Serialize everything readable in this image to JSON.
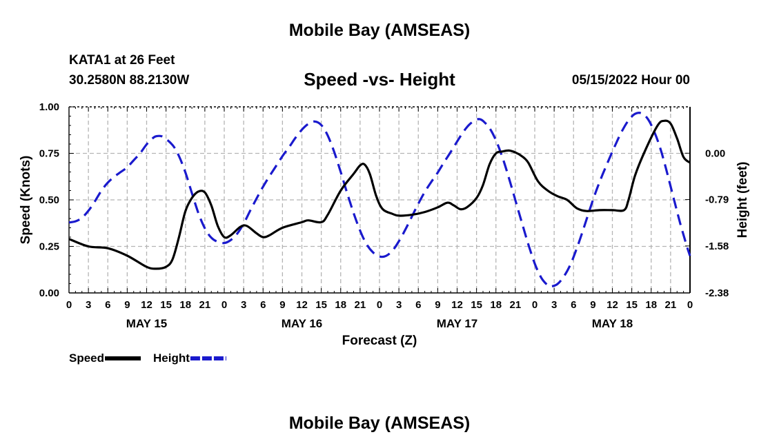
{
  "header": {
    "title": "Mobile Bay (AMSEAS)",
    "station": "KATA1 at 26 Feet",
    "coords": "30.2580N  88.2130W",
    "chart_title": "Speed -vs- Height",
    "run_time": "05/15/2022 Hour 00"
  },
  "footer": {
    "title": "Mobile Bay (AMSEAS)"
  },
  "chart_data": {
    "type": "line",
    "title": "Speed -vs- Height",
    "xlabel": "Forecast (Z)",
    "ylabel": "Speed (Knots)",
    "y2label": "Height (feet)",
    "x_range": [
      0,
      96
    ],
    "ylim": [
      0,
      1.0
    ],
    "y2lim": [
      -2.38,
      0.79
    ],
    "x_tick_labels": [
      "0",
      "3",
      "6",
      "9",
      "12",
      "15",
      "18",
      "21",
      "0",
      "3",
      "6",
      "9",
      "12",
      "15",
      "18",
      "21",
      "0",
      "3",
      "6",
      "9",
      "12",
      "15",
      "18",
      "21",
      "0",
      "3",
      "6",
      "9",
      "12",
      "15",
      "18",
      "21",
      "0"
    ],
    "y_tick_labels": [
      "0.00",
      "0.25",
      "0.50",
      "0.75",
      "1.00"
    ],
    "y2_tick_labels": [
      "-2.38",
      "-1.58",
      "-0.79",
      "0.00"
    ],
    "day_labels": [
      {
        "label": "MAY 15",
        "hour": 12
      },
      {
        "label": "MAY 16",
        "hour": 36
      },
      {
        "label": "MAY 17",
        "hour": 60
      },
      {
        "label": "MAY 18",
        "hour": 84
      }
    ],
    "grid": true,
    "legend_position": "bottom-left",
    "series": [
      {
        "name": "Speed",
        "axis": "left",
        "color": "#000000",
        "style": "solid",
        "points": [
          [
            0,
            0.29
          ],
          [
            3,
            0.25
          ],
          [
            6,
            0.24
          ],
          [
            9,
            0.2
          ],
          [
            12,
            0.14
          ],
          [
            13.5,
            0.13
          ],
          [
            15,
            0.14
          ],
          [
            16,
            0.18
          ],
          [
            17,
            0.3
          ],
          [
            18,
            0.44
          ],
          [
            19,
            0.51
          ],
          [
            20,
            0.545
          ],
          [
            21,
            0.54
          ],
          [
            22,
            0.47
          ],
          [
            23,
            0.36
          ],
          [
            24,
            0.3
          ],
          [
            25,
            0.31
          ],
          [
            26.5,
            0.355
          ],
          [
            27.5,
            0.36
          ],
          [
            29,
            0.32
          ],
          [
            30,
            0.3
          ],
          [
            31,
            0.31
          ],
          [
            33,
            0.35
          ],
          [
            36,
            0.38
          ],
          [
            37,
            0.39
          ],
          [
            39,
            0.38
          ],
          [
            40,
            0.42
          ],
          [
            42,
            0.55
          ],
          [
            44,
            0.64
          ],
          [
            45,
            0.685
          ],
          [
            45.7,
            0.69
          ],
          [
            46.5,
            0.64
          ],
          [
            47.5,
            0.52
          ],
          [
            48.5,
            0.45
          ],
          [
            50,
            0.425
          ],
          [
            51,
            0.415
          ],
          [
            53,
            0.42
          ],
          [
            55,
            0.435
          ],
          [
            57,
            0.46
          ],
          [
            58.5,
            0.485
          ],
          [
            59.5,
            0.47
          ],
          [
            60.5,
            0.45
          ],
          [
            61.5,
            0.46
          ],
          [
            63,
            0.51
          ],
          [
            64,
            0.58
          ],
          [
            65,
            0.69
          ],
          [
            66,
            0.75
          ],
          [
            67,
            0.76
          ],
          [
            68,
            0.765
          ],
          [
            69,
            0.755
          ],
          [
            70,
            0.735
          ],
          [
            71,
            0.7
          ],
          [
            72.5,
            0.6
          ],
          [
            74,
            0.55
          ],
          [
            75.5,
            0.52
          ],
          [
            77,
            0.5
          ],
          [
            78.5,
            0.455
          ],
          [
            80,
            0.44
          ],
          [
            82,
            0.445
          ],
          [
            84,
            0.445
          ],
          [
            85.8,
            0.445
          ],
          [
            86.5,
            0.5
          ],
          [
            87.5,
            0.63
          ],
          [
            89,
            0.76
          ],
          [
            91,
            0.9
          ],
          [
            92,
            0.925
          ],
          [
            93,
            0.91
          ],
          [
            94,
            0.83
          ],
          [
            95,
            0.73
          ],
          [
            96,
            0.7
          ]
        ]
      },
      {
        "name": "Height",
        "axis": "right",
        "color": "#1a1acd",
        "style": "dashed",
        "points": [
          [
            0,
            -1.18
          ],
          [
            1,
            -1.16
          ],
          [
            2,
            -1.1
          ],
          [
            3,
            -0.98
          ],
          [
            4,
            -0.82
          ],
          [
            5,
            -0.64
          ],
          [
            6,
            -0.5
          ],
          [
            7,
            -0.4
          ],
          [
            8,
            -0.32
          ],
          [
            9,
            -0.24
          ],
          [
            10,
            -0.12
          ],
          [
            11,
            0.0
          ],
          [
            12,
            0.15
          ],
          [
            13,
            0.26
          ],
          [
            13.5,
            0.29
          ],
          [
            14.5,
            0.28
          ],
          [
            16,
            0.14
          ],
          [
            17,
            -0.05
          ],
          [
            18,
            -0.33
          ],
          [
            19,
            -0.68
          ],
          [
            20,
            -1.02
          ],
          [
            21,
            -1.28
          ],
          [
            22,
            -1.44
          ],
          [
            23,
            -1.51
          ],
          [
            24,
            -1.53
          ],
          [
            25,
            -1.48
          ],
          [
            26,
            -1.37
          ],
          [
            27,
            -1.2
          ],
          [
            28,
            -0.98
          ],
          [
            29,
            -0.77
          ],
          [
            30,
            -0.57
          ],
          [
            31,
            -0.39
          ],
          [
            32,
            -0.22
          ],
          [
            33,
            -0.05
          ],
          [
            34,
            0.1
          ],
          [
            35,
            0.26
          ],
          [
            36,
            0.4
          ],
          [
            37,
            0.5
          ],
          [
            38,
            0.54
          ],
          [
            39,
            0.48
          ],
          [
            40,
            0.3
          ],
          [
            41,
            0.02
          ],
          [
            42,
            -0.32
          ],
          [
            43,
            -0.68
          ],
          [
            44,
            -1.02
          ],
          [
            45,
            -1.32
          ],
          [
            46,
            -1.55
          ],
          [
            47,
            -1.69
          ],
          [
            48,
            -1.76
          ],
          [
            49,
            -1.75
          ],
          [
            50,
            -1.66
          ],
          [
            51,
            -1.5
          ],
          [
            52,
            -1.3
          ],
          [
            53,
            -1.08
          ],
          [
            54,
            -0.86
          ],
          [
            55,
            -0.66
          ],
          [
            56,
            -0.49
          ],
          [
            57,
            -0.33
          ],
          [
            58,
            -0.15
          ],
          [
            59,
            0.02
          ],
          [
            60,
            0.2
          ],
          [
            61,
            0.37
          ],
          [
            62,
            0.5
          ],
          [
            63,
            0.57
          ],
          [
            63.5,
            0.58
          ],
          [
            64,
            0.55
          ],
          [
            65,
            0.43
          ],
          [
            66,
            0.22
          ],
          [
            67,
            -0.07
          ],
          [
            68,
            -0.42
          ],
          [
            69,
            -0.8
          ],
          [
            70,
            -1.18
          ],
          [
            71,
            -1.55
          ],
          [
            72,
            -1.88
          ],
          [
            73,
            -2.12
          ],
          [
            74,
            -2.25
          ],
          [
            74.5,
            -2.27
          ],
          [
            75.5,
            -2.23
          ],
          [
            76.5,
            -2.1
          ],
          [
            77.5,
            -1.9
          ],
          [
            78.5,
            -1.62
          ],
          [
            79.5,
            -1.3
          ],
          [
            80.5,
            -0.96
          ],
          [
            81.5,
            -0.64
          ],
          [
            82.5,
            -0.36
          ],
          [
            83.5,
            -0.1
          ],
          [
            84.5,
            0.15
          ],
          [
            85.5,
            0.38
          ],
          [
            86.5,
            0.56
          ],
          [
            87.5,
            0.67
          ],
          [
            88.5,
            0.68
          ],
          [
            89.5,
            0.58
          ],
          [
            90.5,
            0.36
          ],
          [
            91.5,
            0.05
          ],
          [
            92.5,
            -0.35
          ],
          [
            93.5,
            -0.78
          ],
          [
            94.5,
            -1.2
          ],
          [
            95.5,
            -1.58
          ],
          [
            96,
            -1.75
          ]
        ]
      }
    ]
  }
}
